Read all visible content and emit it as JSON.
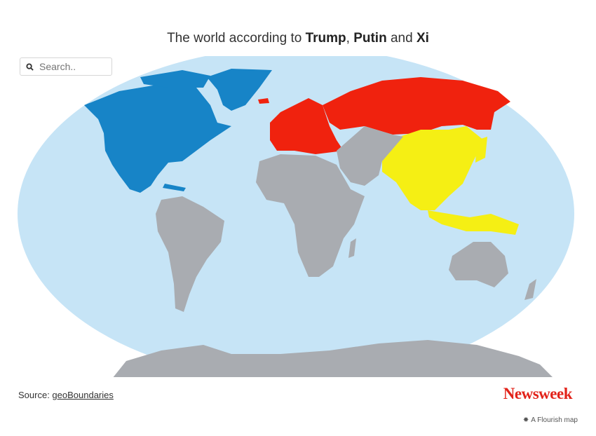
{
  "title": {
    "prefix": "The world according to ",
    "name1": "Trump",
    "sep": ", ",
    "name2": "Putin",
    "and": " and ",
    "name3": "Xi"
  },
  "search": {
    "placeholder": "Search..",
    "icon": "search-icon"
  },
  "legend_colors": {
    "Trump": "#1784c7",
    "Putin": "#f0220e",
    "Xi": "#f5ef14",
    "other": "#a9acb1",
    "ocean": "#c6e4f6"
  },
  "footer": {
    "source_label": "Source: ",
    "source_link": "geoBoundaries",
    "logo": "Newsweek",
    "credit": "A Flourish map"
  }
}
